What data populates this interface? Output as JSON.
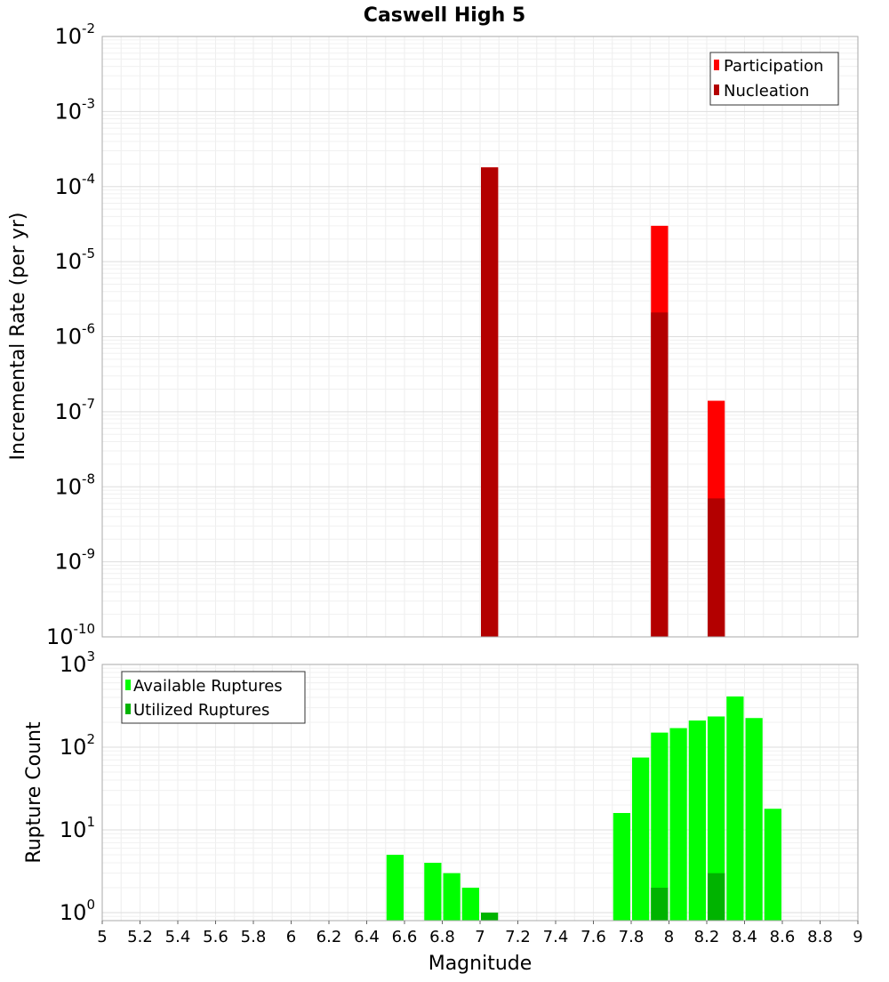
{
  "chart_data": [
    {
      "type": "bar",
      "title": "Caswell High 5",
      "xlabel": "Magnitude",
      "ylabel": "Incremental Rate (per yr)",
      "yscale": "log",
      "ylim": [
        1e-10,
        0.01
      ],
      "xlim": [
        5,
        9
      ],
      "bin_width": 0.1,
      "y_tick_exponents": [
        "-10",
        "-9",
        "-8",
        "-7",
        "-6",
        "-5",
        "-4",
        "-3",
        "-2"
      ],
      "legend": {
        "position": "top-right",
        "entries": [
          "Participation",
          "Nucleation"
        ]
      },
      "series": [
        {
          "name": "Participation",
          "color": "#ff0000",
          "points": [
            {
              "x": 7.05,
              "y": 0.00018
            },
            {
              "x": 7.95,
              "y": 3e-05
            },
            {
              "x": 8.25,
              "y": 1.4e-07
            }
          ]
        },
        {
          "name": "Nucleation",
          "color": "#b30000",
          "points": [
            {
              "x": 7.05,
              "y": 0.00018
            },
            {
              "x": 7.95,
              "y": 2.1e-06
            },
            {
              "x": 8.25,
              "y": 7e-09
            }
          ]
        }
      ]
    },
    {
      "type": "bar",
      "title": "",
      "xlabel": "Magnitude",
      "ylabel": "Rupture Count",
      "yscale": "log",
      "ylim": [
        0.8,
        1000
      ],
      "xlim": [
        5,
        9
      ],
      "bin_width": 0.1,
      "y_tick_exponents": [
        "0",
        "1",
        "2",
        "3"
      ],
      "x_ticks": [
        "5",
        "5.2",
        "5.4",
        "5.6",
        "5.8",
        "6",
        "6.2",
        "6.4",
        "6.6",
        "6.8",
        "7",
        "7.2",
        "7.4",
        "7.6",
        "7.8",
        "8",
        "8.2",
        "8.4",
        "8.6",
        "8.8",
        "9"
      ],
      "legend": {
        "position": "top-left",
        "entries": [
          "Available Ruptures",
          "Utilized Ruptures"
        ]
      },
      "series": [
        {
          "name": "Available Ruptures",
          "color": "#00ff00",
          "points": [
            {
              "x": 6.55,
              "y": 5
            },
            {
              "x": 6.75,
              "y": 4
            },
            {
              "x": 6.85,
              "y": 3
            },
            {
              "x": 6.95,
              "y": 2
            },
            {
              "x": 7.75,
              "y": 16
            },
            {
              "x": 7.85,
              "y": 75
            },
            {
              "x": 7.95,
              "y": 150
            },
            {
              "x": 8.05,
              "y": 170
            },
            {
              "x": 8.15,
              "y": 210
            },
            {
              "x": 8.25,
              "y": 235
            },
            {
              "x": 8.35,
              "y": 410
            },
            {
              "x": 8.45,
              "y": 225
            },
            {
              "x": 8.55,
              "y": 18
            }
          ]
        },
        {
          "name": "Utilized Ruptures",
          "color": "#00b300",
          "points": [
            {
              "x": 7.05,
              "y": 1
            },
            {
              "x": 7.95,
              "y": 2
            },
            {
              "x": 8.25,
              "y": 3
            }
          ]
        }
      ]
    }
  ],
  "tick_base": "10"
}
